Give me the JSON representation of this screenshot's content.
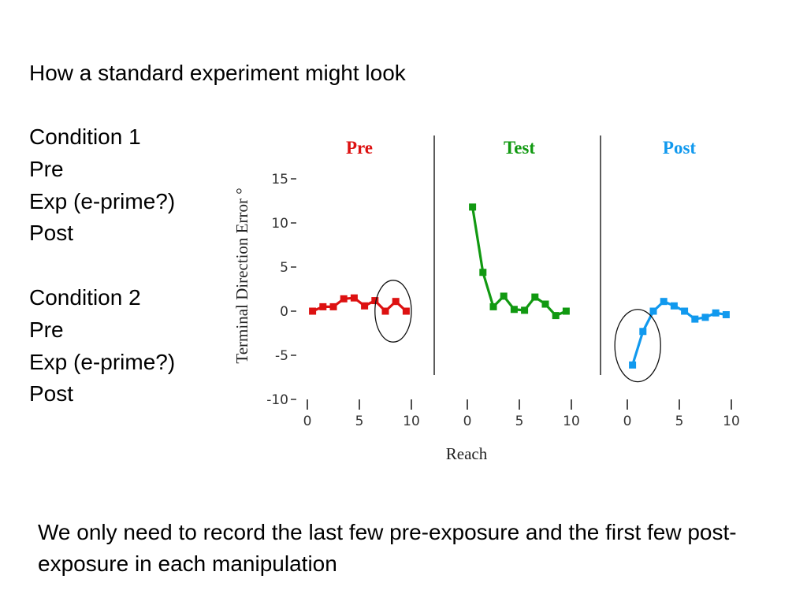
{
  "slide": {
    "heading": "How a standard experiment might look",
    "conditions_list": [
      "Condition 1",
      "Pre",
      "Exp (e-prime?)",
      "Post",
      "",
      "Condition 2",
      "Pre",
      "Exp (e-prime?)",
      "Post"
    ],
    "footer": "We only need to record the last few pre-exposure and the first few post-exposure in each manipulation"
  },
  "colors": {
    "pre": "#dd1111",
    "test": "#119911",
    "post": "#1199ee",
    "text": "#000000"
  },
  "chart_data": {
    "type": "line",
    "xlabel": "Reach",
    "ylabel": "Terminal Direction Error °",
    "ylim": [
      -10,
      15
    ],
    "y_ticks": [
      15,
      10,
      5,
      0,
      -5,
      -10
    ],
    "y_tick_labels": [
      "15",
      "10",
      "5",
      "0",
      "-5",
      "-10"
    ],
    "xlim": [
      0,
      10
    ],
    "x_ticks": [
      0,
      5,
      10
    ],
    "x_tick_labels": [
      "0",
      "5",
      "10"
    ],
    "grid": false,
    "panels": [
      {
        "title": "Pre",
        "color": "#dd1111",
        "x": [
          0.5,
          1.5,
          2.5,
          3.5,
          4.5,
          5.5,
          6.5,
          7.5,
          8.5,
          9.5
        ],
        "y": [
          0,
          0.5,
          0.5,
          1.4,
          1.5,
          0.6,
          1.2,
          0,
          1.1,
          0
        ],
        "annotation": "circle",
        "circle_x_range": [
          6.5,
          10
        ],
        "circle_y_range": [
          -3.5,
          3.5
        ]
      },
      {
        "title": "Test",
        "color": "#119911",
        "x": [
          0.5,
          1.5,
          2.5,
          3.5,
          4.5,
          5.5,
          6.5,
          7.5,
          8.5,
          9.5
        ],
        "y": [
          11.8,
          4.4,
          0.5,
          1.7,
          0.2,
          0.1,
          1.6,
          0.8,
          -0.5,
          0
        ],
        "annotation": null
      },
      {
        "title": "Post",
        "color": "#1199ee",
        "x": [
          0.5,
          1.5,
          2.5,
          3.5,
          4.5,
          5.5,
          6.5,
          7.5,
          8.5,
          9.5
        ],
        "y": [
          -6.1,
          -2.3,
          0,
          1.1,
          0.6,
          0,
          -0.9,
          -0.7,
          -0.2,
          -0.4
        ],
        "annotation": "circle",
        "circle_x_range": [
          -1.2,
          3.2
        ],
        "circle_y_range": [
          -8,
          0.2
        ]
      }
    ]
  }
}
